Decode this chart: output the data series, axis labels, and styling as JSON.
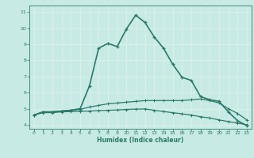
{
  "xlabel": "Humidex (Indice chaleur)",
  "bg_color": "#c8eae4",
  "grid_color": "#e8f8f5",
  "line_color": "#2a7a6a",
  "xlim": [
    -0.5,
    23.5
  ],
  "ylim": [
    3.75,
    11.4
  ],
  "xticks": [
    0,
    1,
    2,
    3,
    4,
    5,
    6,
    7,
    8,
    9,
    10,
    11,
    12,
    13,
    14,
    15,
    16,
    17,
    18,
    19,
    20,
    21,
    22,
    23
  ],
  "yticks": [
    4,
    5,
    6,
    7,
    8,
    9,
    10,
    11
  ],
  "curve1_x": [
    0,
    1,
    2,
    3,
    4,
    5,
    6,
    7,
    8,
    9,
    10,
    11,
    12,
    13,
    14,
    15,
    16,
    17,
    18,
    19,
    20,
    21,
    22,
    23
  ],
  "curve1_y": [
    4.6,
    4.8,
    4.8,
    4.85,
    4.9,
    4.95,
    5.1,
    5.2,
    5.3,
    5.35,
    5.4,
    5.45,
    5.5,
    5.5,
    5.5,
    5.5,
    5.5,
    5.55,
    5.6,
    5.5,
    5.35,
    5.0,
    4.7,
    4.3
  ],
  "curve2_x": [
    0,
    1,
    2,
    3,
    4,
    5,
    6,
    7,
    8,
    9,
    10,
    11,
    12,
    13,
    14,
    15,
    16,
    17,
    18,
    19,
    20,
    21,
    22,
    23
  ],
  "curve2_y": [
    4.6,
    4.75,
    4.75,
    4.8,
    4.82,
    4.83,
    4.85,
    4.88,
    4.9,
    4.92,
    4.95,
    4.97,
    4.98,
    4.9,
    4.82,
    4.75,
    4.68,
    4.6,
    4.5,
    4.42,
    4.3,
    4.2,
    4.1,
    4.0
  ],
  "curve3_x": [
    0,
    1,
    2,
    3,
    4,
    5,
    6,
    7,
    8,
    9,
    10,
    11,
    12,
    13,
    14,
    15,
    16,
    17,
    18,
    19,
    20,
    21,
    22,
    23
  ],
  "curve3_y": [
    4.6,
    4.8,
    4.8,
    4.85,
    4.9,
    5.0,
    6.4,
    8.75,
    9.05,
    8.85,
    9.95,
    10.8,
    10.35,
    9.45,
    8.75,
    7.75,
    6.95,
    6.75,
    5.75,
    5.55,
    5.45,
    4.8,
    4.25,
    3.95
  ]
}
